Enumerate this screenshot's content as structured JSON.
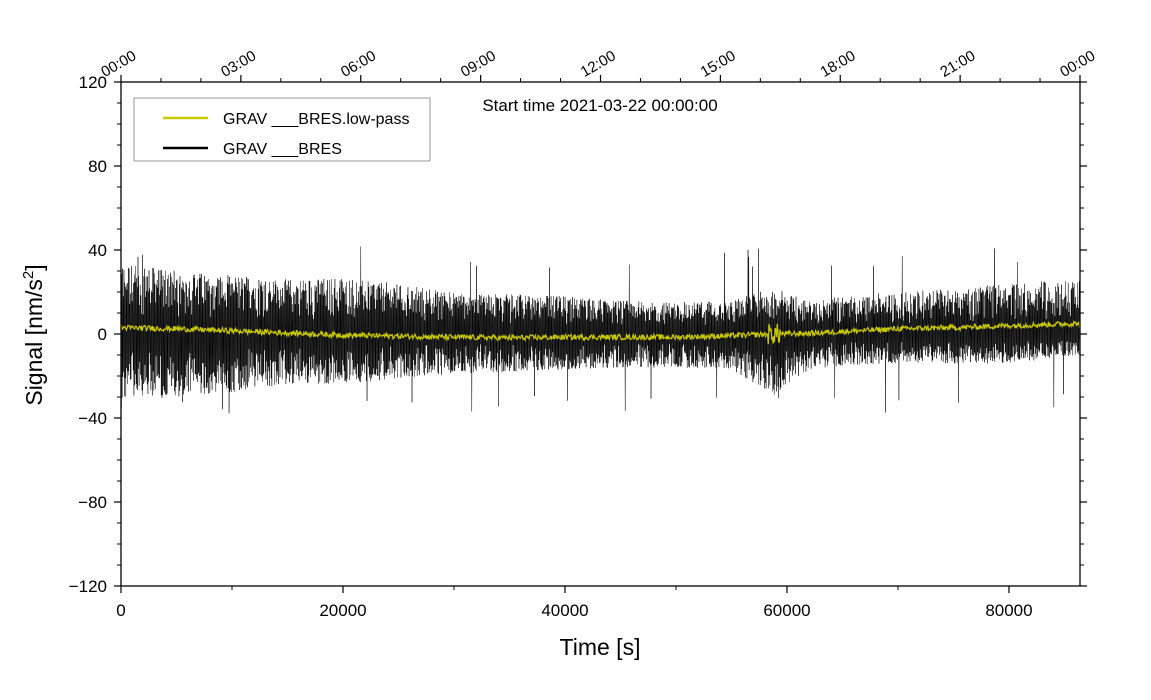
{
  "chart_data": {
    "type": "line",
    "annotation": "Start time 2021-03-22 00:00:00",
    "xlabel": "Time [s]",
    "ylabel_main": "Signal [nm/s",
    "ylabel_sup": "2",
    "ylabel_tail": "]",
    "xlim": [
      0,
      86400
    ],
    "ylim": [
      -120,
      120
    ],
    "x_ticks": [
      0,
      20000,
      40000,
      60000,
      80000
    ],
    "x_tick_labels": [
      "0",
      "20000",
      "40000",
      "60000",
      "80000"
    ],
    "y_ticks": [
      -120,
      -80,
      -40,
      0,
      40,
      80,
      120
    ],
    "y_tick_labels": [
      "−120",
      "−80",
      "−40",
      "0",
      "40",
      "80",
      "120"
    ],
    "top_ticks": [
      0,
      10800,
      21600,
      32400,
      43200,
      54000,
      64800,
      75600,
      86400
    ],
    "top_tick_labels": [
      "00:00",
      "03:00",
      "06:00",
      "09:00",
      "12:00",
      "15:00",
      "18:00",
      "21:00",
      "00:00"
    ],
    "grid": false,
    "legend_position": "top-left",
    "series": [
      {
        "name": "GRAV ___BRES.low-pass",
        "color": "#c8c800",
        "x": [
          0,
          5000,
          10000,
          15000,
          20000,
          25000,
          30000,
          35000,
          40000,
          45000,
          50000,
          55000,
          58800,
          62000,
          65000,
          70000,
          75000,
          80000,
          86400
        ],
        "y": [
          3,
          2.5,
          1.5,
          0.5,
          -0.5,
          -1,
          -1.5,
          -1.8,
          -1.5,
          -1.5,
          -1.5,
          -0.8,
          0,
          0.3,
          1.2,
          2.5,
          3,
          4,
          5
        ]
      },
      {
        "name": "GRAV ___BRES",
        "color": "#000000",
        "x": [
          0,
          5000,
          10000,
          15000,
          20000,
          25000,
          30000,
          35000,
          40000,
          45000,
          50000,
          55000,
          58800,
          62000,
          65000,
          70000,
          75000,
          80000,
          86400
        ],
        "upper_envelope": [
          34,
          30,
          28,
          26,
          27,
          24,
          20,
          19,
          18,
          16,
          15,
          16,
          22,
          16,
          18,
          20,
          22,
          24,
          26
        ],
        "lower_envelope": [
          -32,
          -30,
          -28,
          -24,
          -24,
          -21,
          -19,
          -18,
          -17,
          -16,
          -16,
          -17,
          -29,
          -17,
          -15,
          -14,
          -14,
          -14,
          -10
        ],
        "max": 42,
        "min": -38
      }
    ]
  }
}
